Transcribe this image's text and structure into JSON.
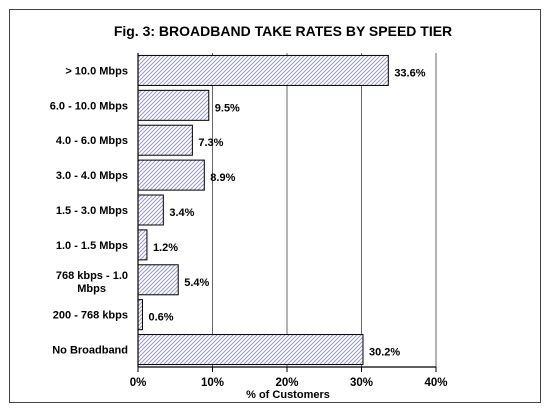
{
  "chart_data": {
    "type": "bar",
    "orientation": "horizontal",
    "title": "Fig. 3:  BROADBAND TAKE RATES BY SPEED TIER",
    "xlabel": "% of Customers",
    "ylabel": "",
    "categories": [
      "> 10.0 Mbps",
      "6.0 - 10.0 Mbps",
      "4.0 - 6.0 Mbps",
      "3.0 - 4.0 Mbps",
      "1.5 - 3.0 Mbps",
      "1.0 - 1.5 Mbps",
      "768 kbps - 1.0 Mbps",
      "200 - 768 kbps",
      "No Broadband"
    ],
    "values": [
      33.6,
      9.5,
      7.3,
      8.9,
      3.4,
      1.2,
      5.4,
      0.6,
      30.2
    ],
    "data_labels": [
      "33.6%",
      "9.5%",
      "7.3%",
      "8.9%",
      "3.4%",
      "1.2%",
      "5.4%",
      "0.6%",
      "30.2%"
    ],
    "xlim": [
      0,
      40
    ],
    "xticks": [
      "0%",
      "10%",
      "20%",
      "30%",
      "40%"
    ],
    "grid": "vertical",
    "legend": "none",
    "bar_fill": "diagonal-hatch",
    "colors": {
      "bar_stroke": "#000000",
      "hatch": "#9a9ac8",
      "grid": "#000000"
    }
  }
}
